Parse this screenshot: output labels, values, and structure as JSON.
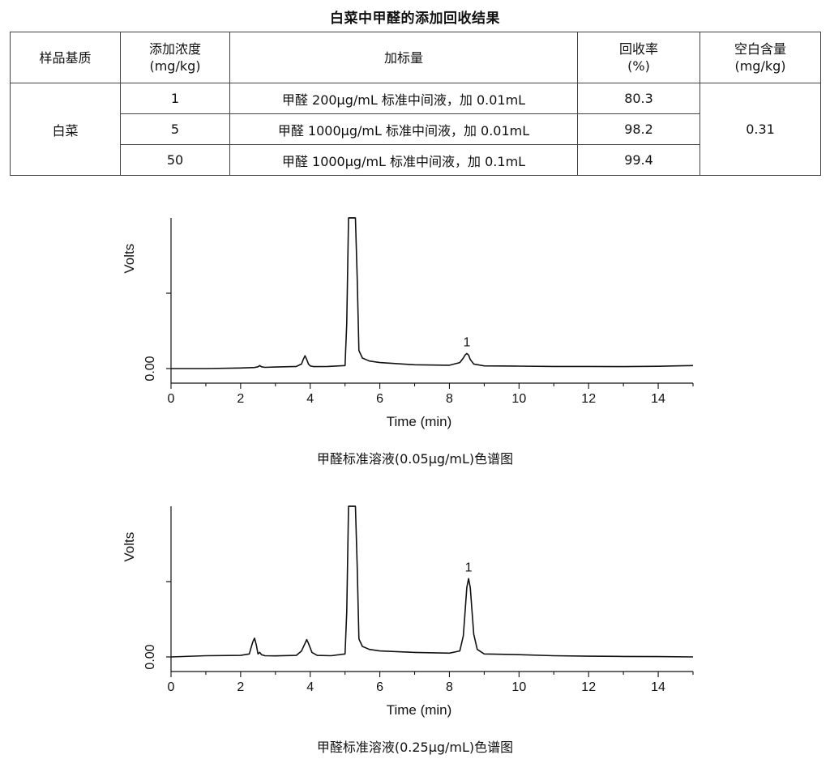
{
  "title": "白菜中甲醛的添加回收结果",
  "table": {
    "headers": [
      "样品基质",
      "添加浓度\n(mg/kg)",
      "加标量",
      "回收率\n(%)",
      "空白含量\n(mg/kg)"
    ],
    "matrix": "白菜",
    "blank": "0.31",
    "rows": [
      {
        "conc": "1",
        "spike": "甲醛 200μg/mL 标准中间液，加 0.01mL",
        "recovery": "80.3"
      },
      {
        "conc": "5",
        "spike": "甲醛 1000μg/mL 标准中间液，加 0.01mL",
        "recovery": "98.2"
      },
      {
        "conc": "50",
        "spike": "甲醛 1000μg/mL 标准中间液，加 0.1mL",
        "recovery": "99.4"
      }
    ]
  },
  "chart_data": [
    {
      "type": "line",
      "caption": "甲醛标准溶液(0.05μg/mL)色谱图",
      "xlabel": "Time (min)",
      "ylabel": "Volts",
      "xlim": [
        0,
        15
      ],
      "xticks": [
        0,
        2,
        4,
        6,
        8,
        10,
        12,
        14
      ],
      "ytick_label": "0.00",
      "ylim": [
        -0.1,
        1.0
      ],
      "peak_label": "1",
      "peak_label_x": 8.5,
      "clipped_at_top": true,
      "x": [
        0,
        1,
        2,
        2.4,
        2.5,
        2.55,
        2.6,
        2.7,
        3,
        3.6,
        3.75,
        3.8,
        3.85,
        3.9,
        3.95,
        4.0,
        4.1,
        4.5,
        5.0,
        5.05,
        5.1,
        5.15,
        5.2,
        5.25,
        5.3,
        5.35,
        5.4,
        5.5,
        5.7,
        6.0,
        7.0,
        8.0,
        8.3,
        8.4,
        8.45,
        8.5,
        8.55,
        8.6,
        8.7,
        9.0,
        10,
        11,
        12,
        13,
        14,
        14.5,
        15
      ],
      "y": [
        0.0,
        0.0,
        0.004,
        0.007,
        0.012,
        0.02,
        0.012,
        0.008,
        0.01,
        0.014,
        0.03,
        0.06,
        0.085,
        0.06,
        0.03,
        0.018,
        0.013,
        0.014,
        0.02,
        0.3,
        1.0,
        1.0,
        1.0,
        1.0,
        1.0,
        0.6,
        0.12,
        0.07,
        0.05,
        0.04,
        0.025,
        0.022,
        0.04,
        0.07,
        0.09,
        0.1,
        0.09,
        0.06,
        0.03,
        0.018,
        0.016,
        0.014,
        0.014,
        0.013,
        0.015,
        0.018,
        0.02
      ]
    },
    {
      "type": "line",
      "caption": "甲醛标准溶液(0.25μg/mL)色谱图",
      "xlabel": "Time (min)",
      "ylabel": "Volts",
      "xlim": [
        0,
        15
      ],
      "xticks": [
        0,
        2,
        4,
        6,
        8,
        10,
        12,
        14
      ],
      "ytick_label": "0.00",
      "ylim": [
        -0.1,
        1.0
      ],
      "peak_label": "1",
      "peak_label_x": 8.55,
      "clipped_at_top": true,
      "x": [
        0,
        1,
        2,
        2.25,
        2.3,
        2.35,
        2.4,
        2.45,
        2.5,
        2.55,
        2.6,
        2.7,
        3.0,
        3.6,
        3.75,
        3.85,
        3.9,
        3.95,
        4.05,
        4.2,
        4.6,
        5.0,
        5.05,
        5.1,
        5.15,
        5.2,
        5.25,
        5.3,
        5.35,
        5.4,
        5.5,
        5.7,
        6.0,
        7.0,
        8.0,
        8.3,
        8.4,
        8.45,
        8.5,
        8.55,
        8.6,
        8.65,
        8.7,
        8.8,
        9.0,
        10,
        11,
        12,
        13,
        14,
        15
      ],
      "y": [
        0.0,
        0.008,
        0.01,
        0.02,
        0.06,
        0.1,
        0.125,
        0.08,
        0.02,
        0.03,
        0.015,
        0.008,
        0.007,
        0.01,
        0.04,
        0.09,
        0.115,
        0.09,
        0.03,
        0.01,
        0.008,
        0.02,
        0.3,
        1.0,
        1.0,
        1.0,
        1.0,
        1.0,
        0.6,
        0.12,
        0.07,
        0.05,
        0.04,
        0.03,
        0.025,
        0.04,
        0.14,
        0.3,
        0.46,
        0.52,
        0.46,
        0.3,
        0.15,
        0.05,
        0.02,
        0.015,
        0.008,
        0.005,
        0.003,
        0.002,
        0.0
      ]
    }
  ]
}
